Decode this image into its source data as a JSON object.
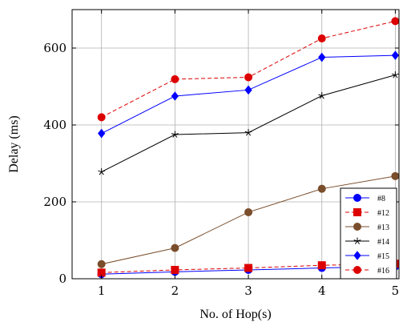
{
  "chart_data": {
    "type": "line",
    "title": "",
    "xlabel": "No. of Hop(s)",
    "ylabel": "Delay (ms)",
    "x": [
      1,
      2,
      3,
      4,
      5
    ],
    "xlim": [
      0.6,
      5.05
    ],
    "ylim": [
      0,
      700
    ],
    "x_ticks": [
      "1",
      "2",
      "3",
      "4",
      "5"
    ],
    "y_ticks": [
      0,
      200,
      400,
      600
    ],
    "grid": true,
    "legend_position": "bottom-right",
    "series": [
      {
        "name": "#8",
        "color": "#0000ff",
        "marker": "circle",
        "dash": "solid",
        "values": [
          12,
          18,
          23,
          28,
          32
        ]
      },
      {
        "name": "#12",
        "color": "#dd0000",
        "marker": "square",
        "dash": "dashed",
        "values": [
          16,
          23,
          28,
          35,
          39
        ]
      },
      {
        "name": "#13",
        "color": "#7a4d2b",
        "marker": "circle",
        "dash": "solid",
        "values": [
          38,
          80,
          173,
          234,
          267
        ]
      },
      {
        "name": "#14",
        "color": "#000000",
        "marker": "star",
        "dash": "solid",
        "values": [
          278,
          375,
          380,
          476,
          530
        ]
      },
      {
        "name": "#15",
        "color": "#0000ff",
        "marker": "diamond",
        "dash": "solid",
        "values": [
          378,
          475,
          491,
          576,
          581
        ]
      },
      {
        "name": "#16",
        "color": "#dd0000",
        "marker": "circle",
        "dash": "dashed",
        "values": [
          420,
          519,
          524,
          625,
          670
        ]
      }
    ]
  }
}
